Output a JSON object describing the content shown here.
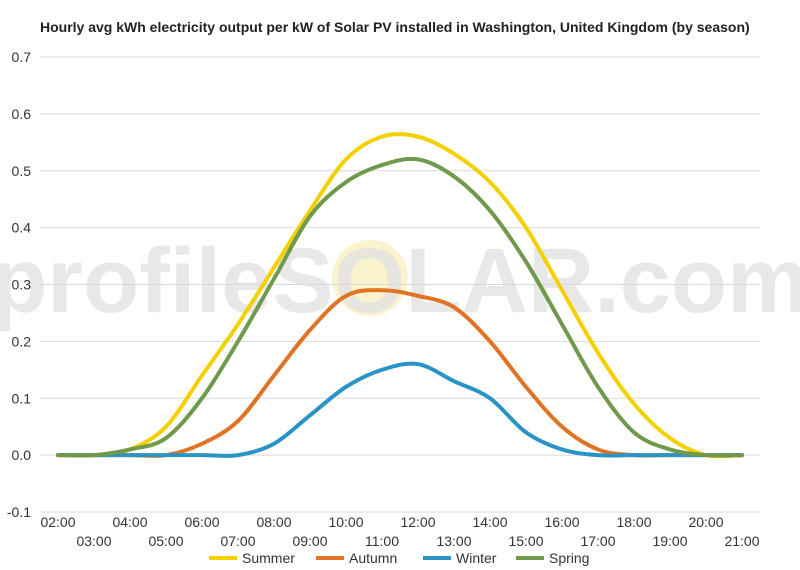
{
  "chart_data": {
    "type": "line",
    "title": "Hourly avg kWh electricity output per kW of Solar PV installed in Washington, United Kingdom (by season)",
    "watermark": "profileSOLAR.com",
    "xlabel": "",
    "ylabel": "",
    "ylim": [
      -0.1,
      0.7
    ],
    "yticks": [
      -0.1,
      0.0,
      0.1,
      0.2,
      0.3,
      0.4,
      0.5,
      0.6,
      0.7
    ],
    "ytick_labels": [
      "-0.1",
      "0.0",
      "0.1",
      "0.2",
      "0.3",
      "0.4",
      "0.5",
      "0.6",
      "0.7"
    ],
    "x_hours": [
      2,
      3,
      4,
      5,
      6,
      7,
      8,
      9,
      10,
      11,
      12,
      13,
      14,
      15,
      16,
      17,
      18,
      19,
      20,
      21
    ],
    "xtick_labels": [
      "02:00",
      "03:00",
      "04:00",
      "05:00",
      "06:00",
      "07:00",
      "08:00",
      "09:00",
      "10:00",
      "11:00",
      "12:00",
      "13:00",
      "14:00",
      "15:00",
      "16:00",
      "17:00",
      "18:00",
      "19:00",
      "20:00",
      "21:00"
    ],
    "grid": true,
    "legend_position": "bottom",
    "series": [
      {
        "name": "Summer",
        "color": "#f5d000",
        "values": [
          0.0,
          0.0,
          0.01,
          0.05,
          0.14,
          0.23,
          0.33,
          0.43,
          0.52,
          0.56,
          0.56,
          0.53,
          0.48,
          0.4,
          0.29,
          0.18,
          0.09,
          0.03,
          0.0,
          0.0
        ]
      },
      {
        "name": "Autumn",
        "color": "#e07424",
        "values": [
          0.0,
          0.0,
          0.0,
          0.0,
          0.02,
          0.06,
          0.14,
          0.22,
          0.28,
          0.29,
          0.28,
          0.26,
          0.2,
          0.12,
          0.05,
          0.01,
          0.0,
          0.0,
          0.0,
          0.0
        ]
      },
      {
        "name": "Winter",
        "color": "#2a94c4",
        "values": [
          0.0,
          0.0,
          0.0,
          0.0,
          0.0,
          0.0,
          0.02,
          0.07,
          0.12,
          0.15,
          0.16,
          0.13,
          0.1,
          0.04,
          0.01,
          0.0,
          0.0,
          0.0,
          0.0,
          0.0
        ]
      },
      {
        "name": "Spring",
        "color": "#6f9a4b",
        "values": [
          0.0,
          0.0,
          0.01,
          0.03,
          0.1,
          0.2,
          0.31,
          0.42,
          0.48,
          0.51,
          0.52,
          0.49,
          0.43,
          0.34,
          0.23,
          0.12,
          0.04,
          0.01,
          0.0,
          0.0
        ]
      }
    ]
  }
}
